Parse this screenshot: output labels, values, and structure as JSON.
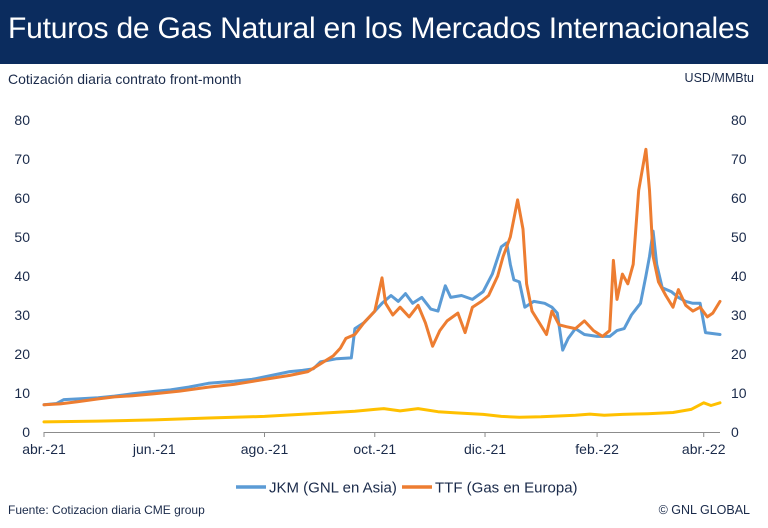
{
  "header": {
    "title": "Futuros de Gas Natural en los Mercados Internacionales"
  },
  "subtitle": "Cotización diaria contrato front-month",
  "unit": "USD/MMBtu",
  "footer": {
    "source": "Fuente: Cotizacion diaria CME group",
    "brand": "© GNL GLOBAL"
  },
  "chart_data": {
    "type": "line",
    "x_tick_labels": [
      "abr.-21",
      "jun.-21",
      "ago.-21",
      "oct.-21",
      "dic.-21",
      "feb.-22",
      "abr.-22"
    ],
    "x_range": [
      "2021-04-01",
      "2022-04-10"
    ],
    "ylim": [
      0,
      80
    ],
    "y_ticks": [
      0,
      10,
      20,
      30,
      40,
      50,
      60,
      70,
      80
    ],
    "grid": false,
    "legend_position": "bottom",
    "colors": {
      "JKM": "#5b9bd5",
      "TTF": "#ed7d31",
      "HH": "#ffc000"
    },
    "series": [
      {
        "name": "JKM (GNL en Asia)",
        "key": "JKM",
        "in_legend": true,
        "points": [
          [
            "2021-04-01",
            7.0
          ],
          [
            "2021-04-08",
            7.3
          ],
          [
            "2021-04-12",
            8.3
          ],
          [
            "2021-04-20",
            8.5
          ],
          [
            "2021-05-01",
            8.8
          ],
          [
            "2021-05-10",
            9.2
          ],
          [
            "2021-05-20",
            9.8
          ],
          [
            "2021-06-01",
            10.4
          ],
          [
            "2021-06-10",
            10.8
          ],
          [
            "2021-06-20",
            11.5
          ],
          [
            "2021-07-01",
            12.5
          ],
          [
            "2021-07-15",
            13.0
          ],
          [
            "2021-07-25",
            13.5
          ],
          [
            "2021-08-05",
            14.5
          ],
          [
            "2021-08-15",
            15.5
          ],
          [
            "2021-08-22",
            15.8
          ],
          [
            "2021-08-28",
            16.2
          ],
          [
            "2021-09-01",
            18.0
          ],
          [
            "2021-09-10",
            18.8
          ],
          [
            "2021-09-18",
            19.0
          ],
          [
            "2021-09-20",
            26.5
          ],
          [
            "2021-09-25",
            28.0
          ],
          [
            "2021-09-30",
            30.5
          ],
          [
            "2021-10-05",
            33.0
          ],
          [
            "2021-10-10",
            35.0
          ],
          [
            "2021-10-14",
            33.5
          ],
          [
            "2021-10-18",
            35.5
          ],
          [
            "2021-10-22",
            33.0
          ],
          [
            "2021-10-27",
            34.5
          ],
          [
            "2021-11-01",
            31.5
          ],
          [
            "2021-11-05",
            31.0
          ],
          [
            "2021-11-09",
            37.5
          ],
          [
            "2021-11-12",
            34.5
          ],
          [
            "2021-11-18",
            35.0
          ],
          [
            "2021-11-24",
            34.0
          ],
          [
            "2021-11-30",
            36.0
          ],
          [
            "2021-12-05",
            40.5
          ],
          [
            "2021-12-10",
            47.5
          ],
          [
            "2021-12-13",
            48.5
          ],
          [
            "2021-12-15",
            43.0
          ],
          [
            "2021-12-17",
            39.0
          ],
          [
            "2021-12-20",
            38.5
          ],
          [
            "2021-12-23",
            32.0
          ],
          [
            "2021-12-28",
            33.5
          ],
          [
            "2022-01-03",
            33.0
          ],
          [
            "2022-01-07",
            32.0
          ],
          [
            "2022-01-10",
            30.5
          ],
          [
            "2022-01-13",
            21.0
          ],
          [
            "2022-01-16",
            24.0
          ],
          [
            "2022-01-20",
            26.5
          ],
          [
            "2022-01-25",
            25.0
          ],
          [
            "2022-02-01",
            24.5
          ],
          [
            "2022-02-08",
            24.5
          ],
          [
            "2022-02-12",
            26.0
          ],
          [
            "2022-02-16",
            26.5
          ],
          [
            "2022-02-20",
            30.0
          ],
          [
            "2022-02-25",
            33.0
          ],
          [
            "2022-02-28",
            40.0
          ],
          [
            "2022-03-02",
            45.0
          ],
          [
            "2022-03-04",
            51.5
          ],
          [
            "2022-03-06",
            43.0
          ],
          [
            "2022-03-09",
            37.0
          ],
          [
            "2022-03-14",
            36.0
          ],
          [
            "2022-03-18",
            34.5
          ],
          [
            "2022-03-22",
            33.5
          ],
          [
            "2022-03-26",
            33.0
          ],
          [
            "2022-03-30",
            33.0
          ],
          [
            "2022-04-02",
            25.5
          ],
          [
            "2022-04-10",
            25.0
          ]
        ]
      },
      {
        "name": "TTF (Gas en Europa)",
        "key": "TTF",
        "in_legend": true,
        "points": [
          [
            "2021-04-01",
            7.0
          ],
          [
            "2021-04-10",
            7.2
          ],
          [
            "2021-04-20",
            7.8
          ],
          [
            "2021-05-01",
            8.5
          ],
          [
            "2021-05-10",
            9.0
          ],
          [
            "2021-05-20",
            9.3
          ],
          [
            "2021-06-01",
            9.8
          ],
          [
            "2021-06-15",
            10.5
          ],
          [
            "2021-07-01",
            11.5
          ],
          [
            "2021-07-15",
            12.2
          ],
          [
            "2021-08-01",
            13.5
          ],
          [
            "2021-08-15",
            14.5
          ],
          [
            "2021-08-25",
            15.5
          ],
          [
            "2021-09-01",
            17.5
          ],
          [
            "2021-09-08",
            19.5
          ],
          [
            "2021-09-12",
            21.5
          ],
          [
            "2021-09-15",
            24.0
          ],
          [
            "2021-09-20",
            25.0
          ],
          [
            "2021-09-25",
            28.0
          ],
          [
            "2021-10-01",
            31.0
          ],
          [
            "2021-10-05",
            39.5
          ],
          [
            "2021-10-07",
            33.0
          ],
          [
            "2021-10-11",
            30.0
          ],
          [
            "2021-10-15",
            32.0
          ],
          [
            "2021-10-20",
            29.5
          ],
          [
            "2021-10-25",
            32.5
          ],
          [
            "2021-10-29",
            28.0
          ],
          [
            "2021-11-02",
            22.0
          ],
          [
            "2021-11-06",
            26.0
          ],
          [
            "2021-11-10",
            28.5
          ],
          [
            "2021-11-16",
            30.5
          ],
          [
            "2021-11-20",
            25.5
          ],
          [
            "2021-11-24",
            32.0
          ],
          [
            "2021-11-29",
            33.5
          ],
          [
            "2021-12-03",
            35.0
          ],
          [
            "2021-12-08",
            40.0
          ],
          [
            "2021-12-11",
            45.0
          ],
          [
            "2021-12-15",
            50.0
          ],
          [
            "2021-12-19",
            59.5
          ],
          [
            "2021-12-22",
            52.0
          ],
          [
            "2021-12-24",
            38.0
          ],
          [
            "2021-12-27",
            31.0
          ],
          [
            "2021-12-31",
            28.0
          ],
          [
            "2022-01-04",
            25.0
          ],
          [
            "2022-01-07",
            31.0
          ],
          [
            "2022-01-11",
            27.5
          ],
          [
            "2022-01-15",
            27.0
          ],
          [
            "2022-01-20",
            26.5
          ],
          [
            "2022-01-25",
            28.5
          ],
          [
            "2022-01-30",
            26.0
          ],
          [
            "2022-02-04",
            24.5
          ],
          [
            "2022-02-08",
            26.0
          ],
          [
            "2022-02-10",
            44.0
          ],
          [
            "2022-02-12",
            34.0
          ],
          [
            "2022-02-15",
            40.5
          ],
          [
            "2022-02-18",
            38.0
          ],
          [
            "2022-02-21",
            43.0
          ],
          [
            "2022-02-24",
            62.0
          ],
          [
            "2022-02-28",
            72.5
          ],
          [
            "2022-03-02",
            62.0
          ],
          [
            "2022-03-04",
            45.0
          ],
          [
            "2022-03-07",
            38.5
          ],
          [
            "2022-03-11",
            35.0
          ],
          [
            "2022-03-15",
            32.0
          ],
          [
            "2022-03-18",
            36.5
          ],
          [
            "2022-03-22",
            32.5
          ],
          [
            "2022-03-26",
            31.0
          ],
          [
            "2022-03-30",
            32.0
          ],
          [
            "2022-04-03",
            29.5
          ],
          [
            "2022-04-06",
            30.5
          ],
          [
            "2022-04-10",
            33.5
          ]
        ]
      },
      {
        "key": "HH",
        "in_legend": false,
        "points": [
          [
            "2021-04-01",
            2.6
          ],
          [
            "2021-05-01",
            2.8
          ],
          [
            "2021-06-01",
            3.1
          ],
          [
            "2021-07-01",
            3.6
          ],
          [
            "2021-08-01",
            4.0
          ],
          [
            "2021-09-01",
            4.8
          ],
          [
            "2021-09-20",
            5.3
          ],
          [
            "2021-10-01",
            5.8
          ],
          [
            "2021-10-06",
            6.0
          ],
          [
            "2021-10-15",
            5.4
          ],
          [
            "2021-10-25",
            6.0
          ],
          [
            "2021-11-05",
            5.2
          ],
          [
            "2021-11-15",
            4.9
          ],
          [
            "2021-11-30",
            4.5
          ],
          [
            "2021-12-10",
            4.0
          ],
          [
            "2021-12-20",
            3.8
          ],
          [
            "2022-01-01",
            3.9
          ],
          [
            "2022-01-20",
            4.3
          ],
          [
            "2022-01-28",
            4.6
          ],
          [
            "2022-02-05",
            4.3
          ],
          [
            "2022-02-15",
            4.5
          ],
          [
            "2022-03-01",
            4.7
          ],
          [
            "2022-03-15",
            5.0
          ],
          [
            "2022-03-25",
            5.8
          ],
          [
            "2022-04-01",
            7.5
          ],
          [
            "2022-04-05",
            6.8
          ],
          [
            "2022-04-10",
            7.5
          ]
        ]
      }
    ]
  }
}
